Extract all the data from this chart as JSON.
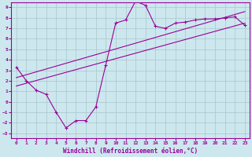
{
  "xlabel": "Windchill (Refroidissement éolien,°C)",
  "xlim": [
    -0.5,
    23.5
  ],
  "ylim": [
    -3.5,
    9.5
  ],
  "xticks": [
    0,
    1,
    2,
    3,
    4,
    5,
    6,
    7,
    8,
    9,
    10,
    11,
    12,
    13,
    14,
    15,
    16,
    17,
    18,
    19,
    20,
    21,
    22,
    23
  ],
  "yticks": [
    -3,
    -2,
    -1,
    0,
    1,
    2,
    3,
    4,
    5,
    6,
    7,
    8,
    9
  ],
  "bg_color": "#cce8ee",
  "line_color": "#990099",
  "grid_color": "#aac4cc",
  "zigzag_x": [
    0,
    1,
    2,
    3,
    4,
    5,
    6,
    7,
    8,
    9,
    10,
    11,
    12,
    13,
    14,
    15,
    16,
    17,
    18,
    19,
    20,
    21,
    22,
    23
  ],
  "zigzag_y": [
    3.3,
    2.0,
    1.1,
    0.7,
    -1.0,
    -2.5,
    -1.8,
    -1.8,
    -0.5,
    3.5,
    7.5,
    7.8,
    9.6,
    9.2,
    7.2,
    7.0,
    7.5,
    7.6,
    7.8,
    7.9,
    7.9,
    8.0,
    8.1,
    7.3
  ],
  "line1_x": [
    0,
    23
  ],
  "line1_y": [
    1.5,
    7.5
  ],
  "line2_x": [
    0,
    23
  ],
  "line2_y": [
    2.3,
    8.6
  ],
  "marker": "+"
}
